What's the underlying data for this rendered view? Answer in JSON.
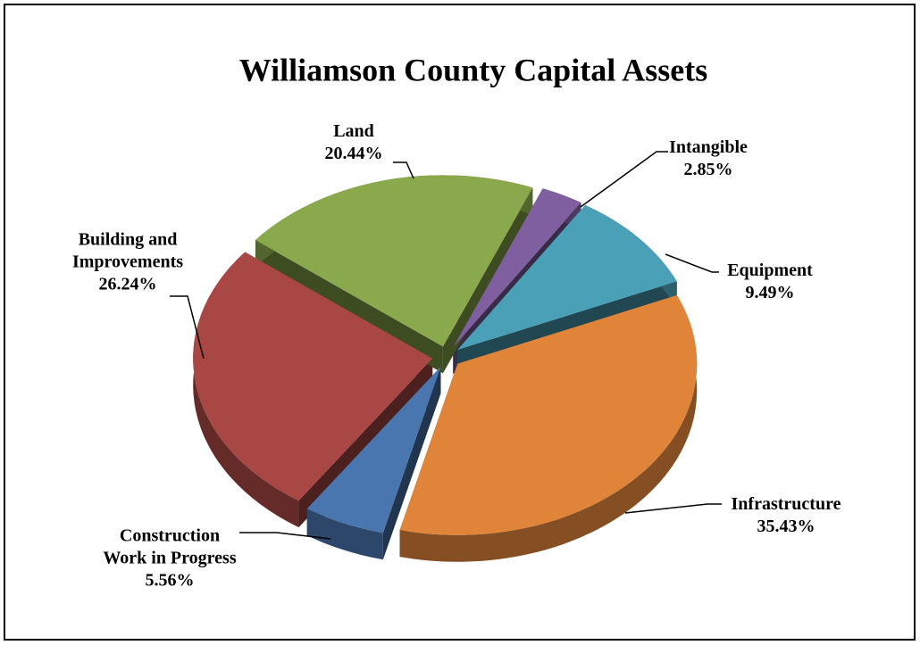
{
  "chart_data": {
    "type": "pie",
    "title": "Williamson County Capital Assets",
    "categories": [
      "Intangible",
      "Equipment",
      "Infrastructure",
      "Construction Work in Progress",
      "Building and Improvements",
      "Land"
    ],
    "values": [
      2.85,
      9.49,
      35.43,
      5.56,
      26.24,
      20.44
    ],
    "value_labels": [
      "2.85%",
      "9.49%",
      "35.43%",
      "5.56%",
      "26.24%",
      "20.44%"
    ],
    "colors": [
      "#7f5fa0",
      "#4aa0b6",
      "#e0843a",
      "#4a76b0",
      "#a94745",
      "#8aa84c"
    ]
  }
}
